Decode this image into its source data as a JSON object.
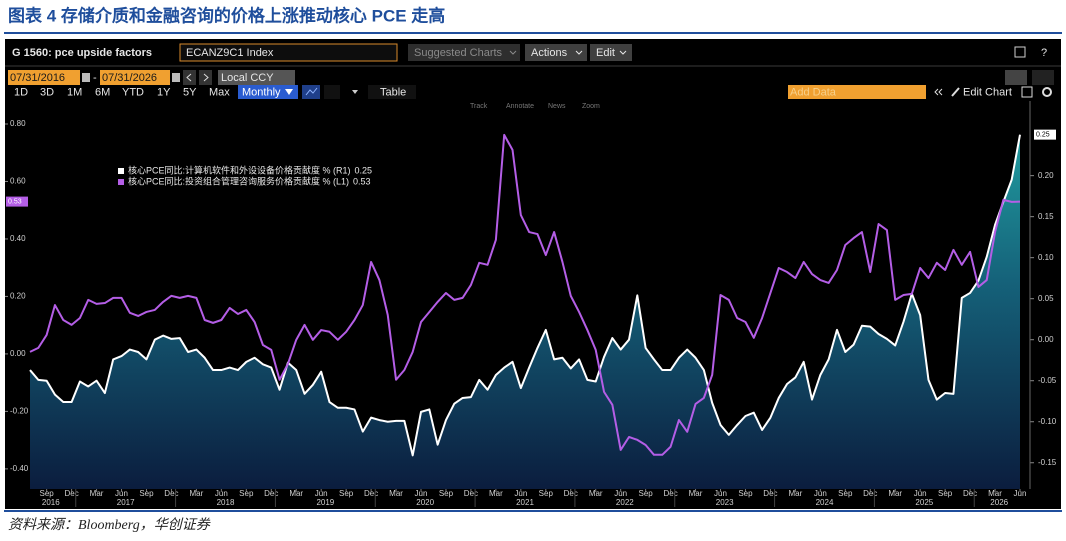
{
  "chart_data": {
    "type": "line",
    "title": "图表 4 存储介质和金融咨询的价格上涨推动核心 PCE 走高",
    "source": "资料来源：Bloomberg，华创证券",
    "categories": [
      null,
      null,
      "Sep",
      null,
      null,
      "Dec",
      null,
      null,
      "Mar",
      null,
      null,
      "Jun",
      null,
      null,
      "Sep",
      null,
      null,
      "Dec",
      null,
      null,
      "Mar",
      null,
      null,
      "Jun",
      null,
      null,
      "Sep",
      null,
      null,
      "Dec",
      null,
      null,
      "Mar",
      null,
      null,
      "Jun",
      null,
      null,
      "Sep",
      null,
      null,
      "Dec",
      null,
      null,
      "Mar",
      null,
      null,
      "Jun",
      null,
      null,
      "Sep",
      null,
      null,
      "Dec",
      null,
      null,
      "Mar",
      null,
      null,
      "Jun",
      null,
      null,
      "Sep",
      null,
      null,
      "Dec",
      null,
      null,
      "Mar",
      null,
      null,
      "Jun",
      null,
      null,
      "Sep",
      null,
      null,
      "Dec",
      null,
      null,
      "Mar",
      null,
      null,
      "Jun",
      null,
      null,
      "Sep",
      null,
      null,
      "Dec",
      null,
      null,
      "Mar",
      null,
      null,
      "Jun",
      null,
      null,
      "Sep",
      null,
      null,
      "Dec",
      null,
      null,
      "Mar",
      null,
      null,
      "Jun",
      null,
      null,
      "Sep",
      null,
      null,
      "Dec",
      null,
      null,
      "Mar",
      null,
      null,
      "Jun"
    ],
    "years": [
      "2016",
      "2017",
      "2018",
      "2019",
      "2020",
      "2021",
      "2022",
      "2023",
      "2024",
      "2025",
      "2026"
    ],
    "series": [
      {
        "name": "核心PCE同比:计算机软件和外设设备价格贡献度 % (R1)",
        "color": "#ffffff",
        "axis": "y2",
        "fill": true,
        "values": [
          -0.037,
          -0.049,
          -0.05,
          -0.067,
          -0.076,
          -0.076,
          -0.051,
          -0.057,
          -0.05,
          -0.065,
          -0.024,
          -0.02,
          -0.012,
          -0.015,
          -0.024,
          0,
          0.005,
          0.001,
          0.002,
          -0.015,
          -0.012,
          -0.022,
          -0.037,
          -0.037,
          -0.034,
          -0.037,
          -0.027,
          -0.022,
          -0.03,
          -0.034,
          -0.061,
          -0.028,
          -0.037,
          -0.066,
          -0.055,
          -0.039,
          -0.076,
          -0.083,
          -0.083,
          -0.085,
          -0.112,
          -0.095,
          -0.098,
          -0.1,
          -0.099,
          -0.099,
          -0.141,
          -0.088,
          -0.085,
          -0.128,
          -0.098,
          -0.078,
          -0.071,
          -0.07,
          -0.049,
          -0.061,
          -0.043,
          -0.034,
          -0.027,
          -0.059,
          -0.034,
          -0.01,
          0.012,
          -0.024,
          -0.022,
          -0.035,
          -0.024,
          -0.049,
          -0.051,
          -0.021,
          0.002,
          -0.012,
          0,
          0.054,
          -0.01,
          -0.024,
          -0.037,
          -0.037,
          -0.022,
          -0.012,
          -0.022,
          -0.037,
          -0.077,
          -0.104,
          -0.116,
          -0.104,
          -0.093,
          -0.089,
          -0.11,
          -0.095,
          -0.071,
          -0.054,
          -0.046,
          -0.027,
          -0.073,
          -0.043,
          -0.024,
          0.012,
          -0.015,
          -0.006,
          0.017,
          0.016,
          0.007,
          0.001,
          -0.007,
          0.022,
          0.056,
          0.03,
          -0.049,
          -0.073,
          -0.065,
          -0.066,
          0.051,
          0.057,
          0.072,
          0.101,
          0.14,
          0.168,
          0.195,
          0.25
        ]
      },
      {
        "name": "核心PCE同比:投资组合管理咨询服务价格贡献度 % (L1)",
        "color": "#b45ee6",
        "values": [
          0.007,
          0.021,
          0.066,
          0.17,
          0.118,
          0.101,
          0.125,
          0.188,
          0.174,
          0.177,
          0.195,
          0.195,
          0.143,
          0.132,
          0.146,
          0.153,
          0.181,
          0.202,
          0.195,
          0.202,
          0.195,
          0.118,
          0.108,
          0.118,
          0.16,
          0.139,
          0.153,
          0.111,
          0.031,
          0.014,
          -0.09,
          -0.035,
          0.049,
          0.101,
          0.049,
          0.083,
          0.077,
          0.049,
          0.077,
          0.118,
          0.17,
          0.32,
          0.257,
          0.136,
          -0.09,
          -0.056,
          0.007,
          0.111,
          0.146,
          0.181,
          0.212,
          0.188,
          0.195,
          0.24,
          0.317,
          0.31,
          0.397,
          0.762,
          0.71,
          0.483,
          0.424,
          0.417,
          0.344,
          0.424,
          0.32,
          0.202,
          0.146,
          0.083,
          0.014,
          -0.132,
          -0.177,
          -0.334,
          -0.289,
          -0.299,
          -0.317,
          -0.351,
          -0.351,
          -0.323,
          -0.23,
          -0.271,
          -0.174,
          -0.153,
          -0.073,
          0.205,
          0.188,
          0.125,
          0.111,
          0.056,
          0.125,
          0.212,
          0.299,
          0.285,
          0.264,
          0.32,
          0.278,
          0.257,
          0.247,
          0.292,
          0.379,
          0.403,
          0.424,
          0.285,
          0.452,
          0.431,
          0.188,
          0.205,
          0.209,
          0.299,
          0.264,
          0.317,
          0.292,
          0.362,
          0.31,
          0.355,
          0.233,
          0.257,
          0.424,
          0.536,
          0.529,
          0.53
        ]
      }
    ],
    "ylim": [
      -0.47,
      0.88
    ],
    "yticks": [
      {
        "value": -0.4,
        "label": "-0.40"
      },
      {
        "value": -0.2,
        "label": "-0.20"
      },
      {
        "value": 0,
        "label": "0.00"
      },
      {
        "value": 0.2,
        "label": "0.20"
      },
      {
        "value": 0.4,
        "label": "0.40"
      },
      {
        "value": 0.6,
        "label": "0.60"
      },
      {
        "value": 0.8,
        "label": "0.80"
      }
    ],
    "y2lim": [
      -0.182,
      0.291
    ],
    "y2ticks": [
      -0.15,
      {
        "value": -0.1,
        "label": "-0.10"
      },
      -0.05,
      {
        "value": 0,
        "label": "0.00"
      },
      0.05,
      {
        "value": 0.1,
        "label": "0.10"
      },
      0.15,
      {
        "value": 0.2,
        "label": "0.20"
      }
    ],
    "grid": false
  },
  "ui": {
    "header": "G 1560: pce upside factors",
    "ticker": "ECANZ9C1 Index",
    "menus": [
      "Suggested Charts",
      "Actions",
      "Edit"
    ],
    "help": "?",
    "start_date": "07/31/2016",
    "dash": "-",
    "end_date": "07/31/2026",
    "currency": "Local CCY",
    "ranges": [
      "1D",
      "3D",
      "1M",
      "6M",
      "YTD",
      "1Y",
      "5Y",
      "Max"
    ],
    "frequency": "Monthly",
    "table": "Table",
    "add_data": "Add Data",
    "edit_chart": "Edit Chart",
    "tools": [
      "Track",
      "Annotate",
      "News",
      "Zoom"
    ]
  }
}
